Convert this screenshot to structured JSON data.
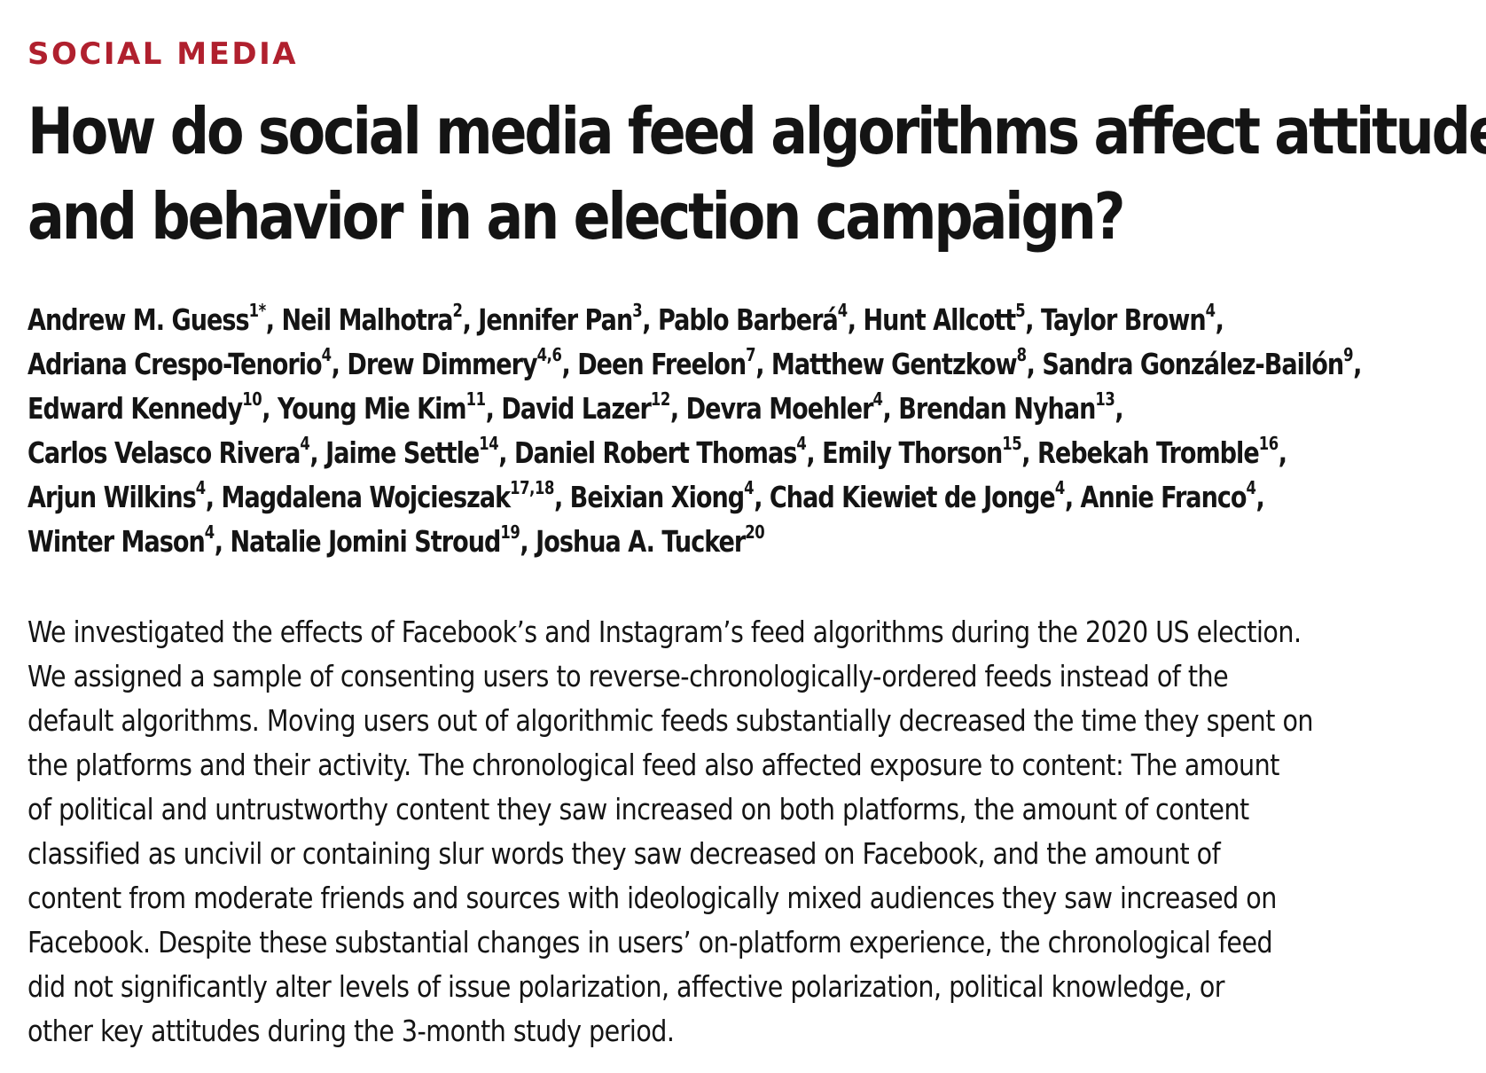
{
  "article": {
    "section_label": "SOCIAL MEDIA",
    "colors": {
      "section_label": "#b0202e",
      "text": "#141414",
      "background": "#ffffff"
    },
    "title_lines": [
      "How do social media feed algorithms affect attitudes",
      "and behavior in an election campaign?"
    ],
    "author_lines": [
      [
        {
          "name": "Andrew M. Guess",
          "sup": "1*"
        },
        {
          "name": "Neil Malhotra",
          "sup": "2"
        },
        {
          "name": "Jennifer Pan",
          "sup": "3"
        },
        {
          "name": "Pablo Barberá",
          "sup": "4"
        },
        {
          "name": "Hunt Allcott",
          "sup": "5"
        },
        {
          "name": "Taylor Brown",
          "sup": "4"
        }
      ],
      [
        {
          "name": "Adriana Crespo-Tenorio",
          "sup": "4"
        },
        {
          "name": "Drew Dimmery",
          "sup": "4,6"
        },
        {
          "name": "Deen Freelon",
          "sup": "7"
        },
        {
          "name": "Matthew Gentzkow",
          "sup": "8"
        },
        {
          "name": "Sandra González-Bailón",
          "sup": "9"
        }
      ],
      [
        {
          "name": "Edward Kennedy",
          "sup": "10"
        },
        {
          "name": "Young Mie Kim",
          "sup": "11"
        },
        {
          "name": "David Lazer",
          "sup": "12"
        },
        {
          "name": "Devra Moehler",
          "sup": "4"
        },
        {
          "name": "Brendan Nyhan",
          "sup": "13"
        }
      ],
      [
        {
          "name": "Carlos Velasco Rivera",
          "sup": "4"
        },
        {
          "name": "Jaime Settle",
          "sup": "14"
        },
        {
          "name": "Daniel Robert Thomas",
          "sup": "4"
        },
        {
          "name": "Emily Thorson",
          "sup": "15"
        },
        {
          "name": "Rebekah Tromble",
          "sup": "16"
        }
      ],
      [
        {
          "name": "Arjun Wilkins",
          "sup": "4"
        },
        {
          "name": "Magdalena Wojcieszak",
          "sup": "17,18"
        },
        {
          "name": "Beixian Xiong",
          "sup": "4"
        },
        {
          "name": "Chad Kiewiet de Jonge",
          "sup": "4"
        },
        {
          "name": "Annie Franco",
          "sup": "4"
        }
      ],
      [
        {
          "name": "Winter Mason",
          "sup": "4"
        },
        {
          "name": "Natalie Jomini Stroud",
          "sup": "19"
        },
        {
          "name": "Joshua A. Tucker",
          "sup": "20"
        }
      ]
    ],
    "abstract_lines": [
      "We investigated the effects of Facebook’s and Instagram’s feed algorithms during the 2020 US election.",
      "We assigned a sample of consenting users to reverse-chronologically-ordered feeds instead of the",
      "default algorithms. Moving users out of algorithmic feeds substantially decreased the time they spent on",
      "the platforms and their activity. The chronological feed also affected exposure to content: The amount",
      "of political and untrustworthy content they saw increased on both platforms, the amount of content",
      "classified as uncivil or containing slur words they saw decreased on Facebook, and the amount of",
      "content from moderate friends and sources with ideologically mixed audiences they saw increased on",
      "Facebook. Despite these substantial changes in users’ on-platform experience, the chronological feed",
      "did not significantly alter levels of issue polarization, affective polarization, political knowledge, or",
      "other key attitudes during the 3-month study period."
    ]
  }
}
